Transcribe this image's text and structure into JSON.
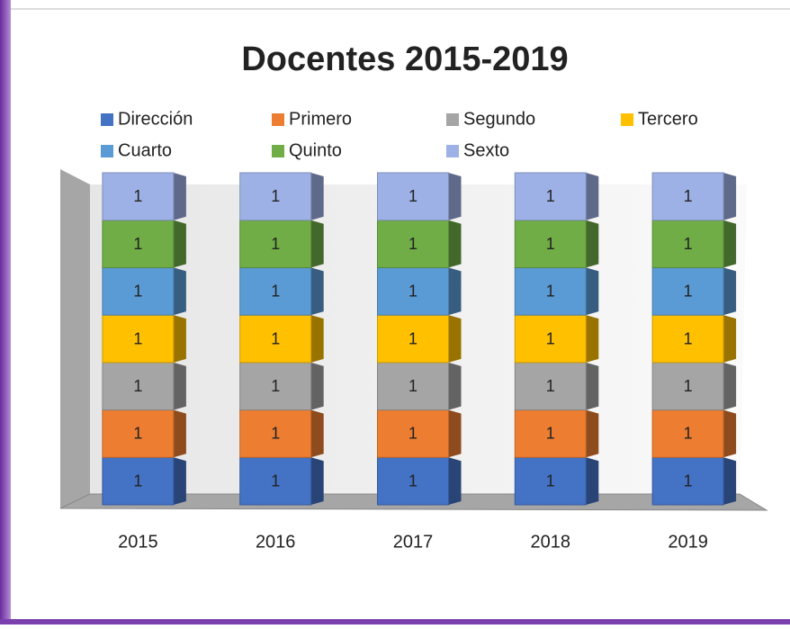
{
  "chart_data": {
    "type": "bar",
    "stacked": true,
    "title": "Docentes 2015-2019",
    "categories": [
      "2015",
      "2016",
      "2017",
      "2018",
      "2019"
    ],
    "series": [
      {
        "name": "Dirección",
        "color": "#4472c4",
        "values": [
          1,
          1,
          1,
          1,
          1
        ]
      },
      {
        "name": "Primero",
        "color": "#ed7d31",
        "values": [
          1,
          1,
          1,
          1,
          1
        ]
      },
      {
        "name": "Segundo",
        "color": "#a5a5a5",
        "values": [
          1,
          1,
          1,
          1,
          1
        ]
      },
      {
        "name": "Tercero",
        "color": "#ffc000",
        "values": [
          1,
          1,
          1,
          1,
          1
        ]
      },
      {
        "name": "Cuarto",
        "color": "#5b9bd5",
        "values": [
          1,
          1,
          1,
          1,
          1
        ]
      },
      {
        "name": "Quinto",
        "color": "#70ad47",
        "values": [
          1,
          1,
          1,
          1,
          1
        ]
      },
      {
        "name": "Sexto",
        "color": "#9eb1e6",
        "values": [
          1,
          1,
          1,
          1,
          1
        ]
      }
    ],
    "legend": "top"
  }
}
